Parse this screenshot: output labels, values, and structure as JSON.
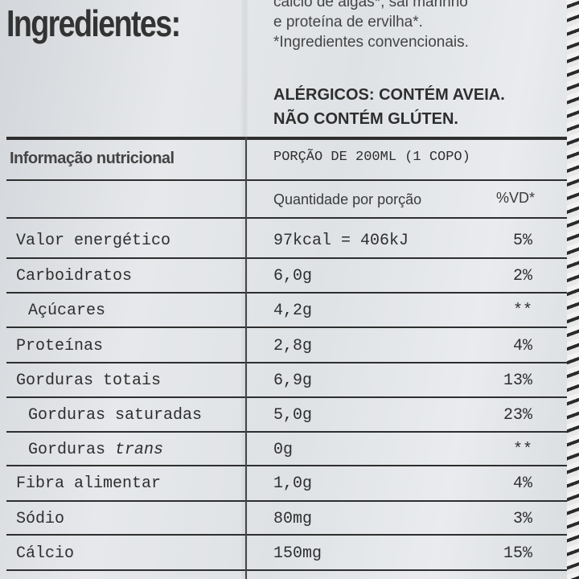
{
  "ingredients": {
    "heading": "Ingredientes:",
    "text_lines": [
      "cálcio de algas*, sal marinho",
      "e proteína de ervilha*.",
      "*Ingredientes convencionais."
    ]
  },
  "allergens": [
    "ALÉRGICOS: CONTÉM AVEIA.",
    "NÃO CONTÉM GLÚTEN."
  ],
  "nutrition": {
    "title": "Informação nutricional",
    "portion": "PORÇÃO DE 200ML (1 COPO)",
    "col_quantity": "Quantidade por porção",
    "col_vd": "%VD*",
    "rows": [
      {
        "name": "Valor energético",
        "amount": "97kcal = 406kJ",
        "vd": "5%"
      },
      {
        "name": "Carboidratos",
        "amount": "6,0g",
        "vd": "2%"
      },
      {
        "name": "Açúcares",
        "amount": "4,2g",
        "vd": "**"
      },
      {
        "name": "Proteínas",
        "amount": "2,8g",
        "vd": "4%"
      },
      {
        "name": "Gorduras totais",
        "amount": "6,9g",
        "vd": "13%"
      },
      {
        "name": "Gorduras saturadas",
        "amount": "5,0g",
        "vd": "23%"
      },
      {
        "name": "Gorduras",
        "name_italic": "trans",
        "amount": "0g",
        "vd": "**"
      },
      {
        "name": "Fibra alimentar",
        "amount": "1,0g",
        "vd": "4%"
      },
      {
        "name": "Sódio",
        "amount": "80mg",
        "vd": "3%"
      },
      {
        "name": "Cálcio",
        "amount": "150mg",
        "vd": "15%"
      }
    ]
  }
}
